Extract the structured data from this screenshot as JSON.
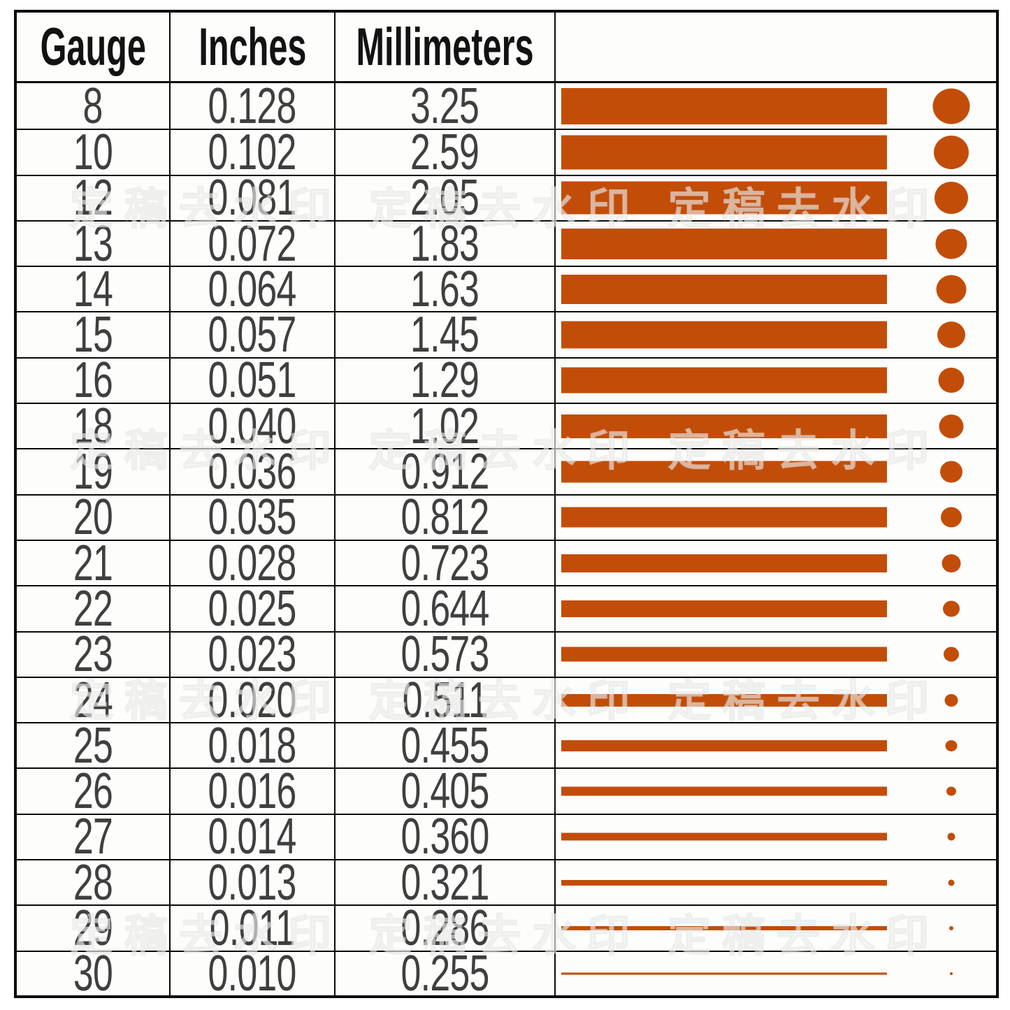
{
  "accent_color": "#C24D08",
  "border_color": "#0a0a0a",
  "text_color": "#3f3f3f",
  "table": {
    "headers": [
      "Gauge",
      "Inches",
      "Millimeters",
      ""
    ],
    "rows": [
      {
        "gauge": "8",
        "inches": "0.128",
        "mm": "3.25"
      },
      {
        "gauge": "10",
        "inches": "0.102",
        "mm": "2.59"
      },
      {
        "gauge": "12",
        "inches": "0.081",
        "mm": "2.05"
      },
      {
        "gauge": "13",
        "inches": "0.072",
        "mm": "1.83"
      },
      {
        "gauge": "14",
        "inches": "0.064",
        "mm": "1.63"
      },
      {
        "gauge": "15",
        "inches": "0.057",
        "mm": "1.45"
      },
      {
        "gauge": "16",
        "inches": "0.051",
        "mm": "1.29"
      },
      {
        "gauge": "18",
        "inches": "0.040",
        "mm": "1.02"
      },
      {
        "gauge": "19",
        "inches": "0.036",
        "mm": "0.912"
      },
      {
        "gauge": "20",
        "inches": "0.035",
        "mm": "0.812"
      },
      {
        "gauge": "21",
        "inches": "0.028",
        "mm": "0.723"
      },
      {
        "gauge": "22",
        "inches": "0.025",
        "mm": "0.644"
      },
      {
        "gauge": "23",
        "inches": "0.023",
        "mm": "0.573"
      },
      {
        "gauge": "24",
        "inches": "0.020",
        "mm": "0.511"
      },
      {
        "gauge": "25",
        "inches": "0.018",
        "mm": "0.455"
      },
      {
        "gauge": "26",
        "inches": "0.016",
        "mm": "0.405"
      },
      {
        "gauge": "27",
        "inches": "0.014",
        "mm": "0.360"
      },
      {
        "gauge": "28",
        "inches": "0.013",
        "mm": "0.321"
      },
      {
        "gauge": "29",
        "inches": "0.011",
        "mm": "0.286"
      },
      {
        "gauge": "30",
        "inches": "0.010",
        "mm": "0.255"
      }
    ]
  },
  "chart_data": {
    "type": "table",
    "columns": [
      "Gauge",
      "Inches",
      "Millimeters"
    ],
    "rows": [
      [
        8,
        0.128,
        3.25
      ],
      [
        10,
        0.102,
        2.59
      ],
      [
        12,
        0.081,
        2.05
      ],
      [
        13,
        0.072,
        1.83
      ],
      [
        14,
        0.064,
        1.63
      ],
      [
        15,
        0.057,
        1.45
      ],
      [
        16,
        0.051,
        1.29
      ],
      [
        18,
        0.04,
        1.02
      ],
      [
        19,
        0.036,
        0.912
      ],
      [
        20,
        0.035,
        0.812
      ],
      [
        21,
        0.028,
        0.723
      ],
      [
        22,
        0.025,
        0.644
      ],
      [
        23,
        0.023,
        0.573
      ],
      [
        24,
        0.02,
        0.511
      ],
      [
        25,
        0.018,
        0.455
      ],
      [
        26,
        0.016,
        0.405
      ],
      [
        27,
        0.014,
        0.36
      ],
      [
        28,
        0.013,
        0.321
      ],
      [
        29,
        0.011,
        0.286
      ],
      [
        30,
        0.01,
        0.255
      ]
    ],
    "visual_encoding": "each row has a fixed-width horizontal orange bar whose thickness decreases with gauge, plus an orange dot whose diameter decreases with gauge",
    "legend_position": "none",
    "grid": true,
    "accent_color": "#C24D08"
  },
  "watermark": {
    "text": "定稿去水印  定稿去水印  定稿去水印"
  }
}
